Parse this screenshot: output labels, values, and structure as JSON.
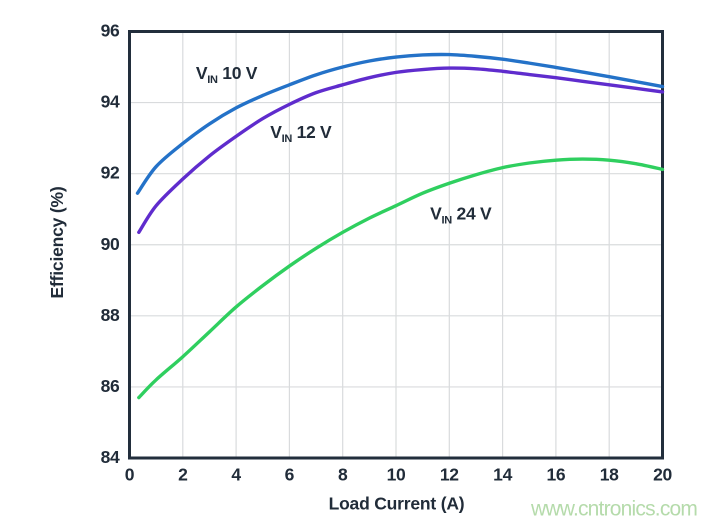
{
  "chart_data": {
    "type": "line",
    "title": "",
    "xlabel": "Load Current (A)",
    "ylabel": "Efficiency (%)",
    "xlim": [
      0,
      20
    ],
    "ylim": [
      84,
      96
    ],
    "xticks": [
      0,
      2,
      4,
      6,
      8,
      10,
      12,
      14,
      16,
      18,
      20
    ],
    "yticks": [
      84,
      86,
      88,
      90,
      92,
      94,
      96
    ],
    "grid": true,
    "legend_position": "inline-labels",
    "axis_color": "#222e3c",
    "grid_color": "#d9dbdd",
    "text_color": "#212c39",
    "series": [
      {
        "name": "VIN 10 V",
        "label": {
          "base": "V",
          "sub": "IN",
          "rest": " 10 V"
        },
        "label_at": [
          3.64,
          94.78
        ],
        "color": "#2472c8",
        "points": [
          [
            0.3,
            91.45
          ],
          [
            1,
            92.2
          ],
          [
            2,
            92.85
          ],
          [
            3,
            93.4
          ],
          [
            4,
            93.85
          ],
          [
            5,
            94.2
          ],
          [
            6,
            94.5
          ],
          [
            7,
            94.78
          ],
          [
            8,
            95.0
          ],
          [
            9,
            95.17
          ],
          [
            10,
            95.28
          ],
          [
            11,
            95.34
          ],
          [
            12,
            95.35
          ],
          [
            13,
            95.3
          ],
          [
            14,
            95.22
          ],
          [
            15,
            95.11
          ],
          [
            16,
            94.99
          ],
          [
            17,
            94.86
          ],
          [
            18,
            94.73
          ],
          [
            19,
            94.59
          ],
          [
            20,
            94.45
          ]
        ]
      },
      {
        "name": "VIN 12 V",
        "label": {
          "base": "V",
          "sub": "IN",
          "rest": " 12 V"
        },
        "label_at": [
          6.43,
          93.12
        ],
        "color": "#5f2ccd",
        "points": [
          [
            0.35,
            90.35
          ],
          [
            1,
            91.1
          ],
          [
            2,
            91.85
          ],
          [
            3,
            92.5
          ],
          [
            4,
            93.05
          ],
          [
            5,
            93.55
          ],
          [
            6,
            93.95
          ],
          [
            7,
            94.28
          ],
          [
            8,
            94.5
          ],
          [
            9,
            94.7
          ],
          [
            10,
            94.85
          ],
          [
            11,
            94.93
          ],
          [
            12,
            94.97
          ],
          [
            13,
            94.95
          ],
          [
            14,
            94.88
          ],
          [
            15,
            94.79
          ],
          [
            16,
            94.7
          ],
          [
            17,
            94.6
          ],
          [
            18,
            94.5
          ],
          [
            19,
            94.4
          ],
          [
            20,
            94.3
          ]
        ]
      },
      {
        "name": "VIN 24 V",
        "label": {
          "base": "V",
          "sub": "IN",
          "rest": " 24 V"
        },
        "label_at": [
          12.43,
          90.83
        ],
        "color": "#2fcf5f",
        "points": [
          [
            0.35,
            85.7
          ],
          [
            1,
            86.2
          ],
          [
            2,
            86.85
          ],
          [
            3,
            87.55
          ],
          [
            4,
            88.25
          ],
          [
            5,
            88.85
          ],
          [
            6,
            89.4
          ],
          [
            7,
            89.9
          ],
          [
            8,
            90.35
          ],
          [
            9,
            90.75
          ],
          [
            10,
            91.1
          ],
          [
            11,
            91.45
          ],
          [
            12,
            91.73
          ],
          [
            13,
            91.97
          ],
          [
            14,
            92.17
          ],
          [
            15,
            92.3
          ],
          [
            16,
            92.38
          ],
          [
            17,
            92.41
          ],
          [
            18,
            92.38
          ],
          [
            19,
            92.28
          ],
          [
            20,
            92.12
          ]
        ]
      }
    ]
  },
  "watermark": {
    "text": "www.cntronics.com",
    "color": "#b5dbab"
  }
}
